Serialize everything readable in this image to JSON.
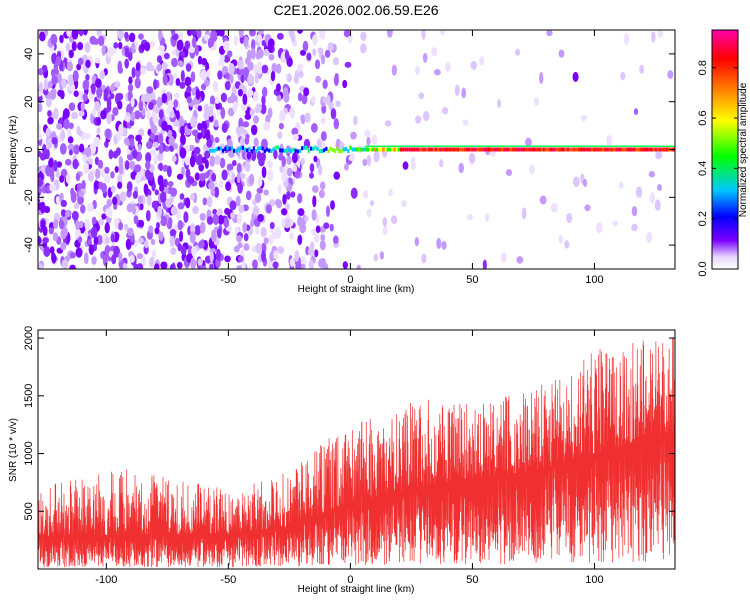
{
  "title": "C2E1.2026.002.06.59.E26",
  "chart_data": [
    {
      "type": "heatmap",
      "xlabel": "Height of straight line (km)",
      "ylabel": "Frequency (Hz)",
      "xlim": [
        -128,
        133
      ],
      "ylim": [
        -50,
        50
      ],
      "xticks": [
        -100,
        -50,
        0,
        50,
        100
      ],
      "xtick_labels": [
        "-100",
        "-50",
        "0",
        "50",
        "100"
      ],
      "yticks": [
        -40,
        -20,
        0,
        20,
        40
      ],
      "ytick_labels": [
        "-40",
        "-20",
        "0",
        "20",
        "40"
      ],
      "colorbar": {
        "label": "Normalized spectral amplitude",
        "range": [
          0,
          0.95
        ],
        "ticks": [
          0,
          0.2,
          0.4,
          0.6,
          0.8
        ],
        "tick_labels": [
          "0.0",
          "0.2",
          "0.4",
          "0.6",
          "0.8"
        ],
        "colors": [
          "#ffffff",
          "#e8d6ff",
          "#7a00ff",
          "#0000ff",
          "#00c8ff",
          "#00ff00",
          "#ffff00",
          "#ff8000",
          "#ff0000",
          "#ff00aa"
        ]
      },
      "description_series": [
        {
          "name": "carrier",
          "frequency_hz": 0,
          "x_start": -58,
          "x_end": 133
        }
      ]
    },
    {
      "type": "line",
      "xlabel": "Height of straight line (km)",
      "ylabel": "SNR (10 * v/v)",
      "xlim": [
        -128,
        133
      ],
      "ylim": [
        0,
        2070
      ],
      "xticks": [
        -100,
        -50,
        0,
        50,
        100
      ],
      "xtick_labels": [
        "-100",
        "-50",
        "0",
        "50",
        "100"
      ],
      "yticks": [
        500,
        1000,
        1500,
        2000
      ],
      "ytick_labels": [
        "500",
        "1000",
        "1500",
        "2000"
      ],
      "color": "#f03030",
      "envelope": {
        "x": [
          -128,
          -100,
          -50,
          -25,
          0,
          25,
          50,
          75,
          100,
          133
        ],
        "mean": [
          280,
          290,
          300,
          360,
          560,
          700,
          780,
          850,
          1000,
          1200
        ],
        "max": [
          700,
          900,
          700,
          850,
          1300,
          1480,
          1450,
          1550,
          1900,
          2050
        ]
      }
    }
  ]
}
